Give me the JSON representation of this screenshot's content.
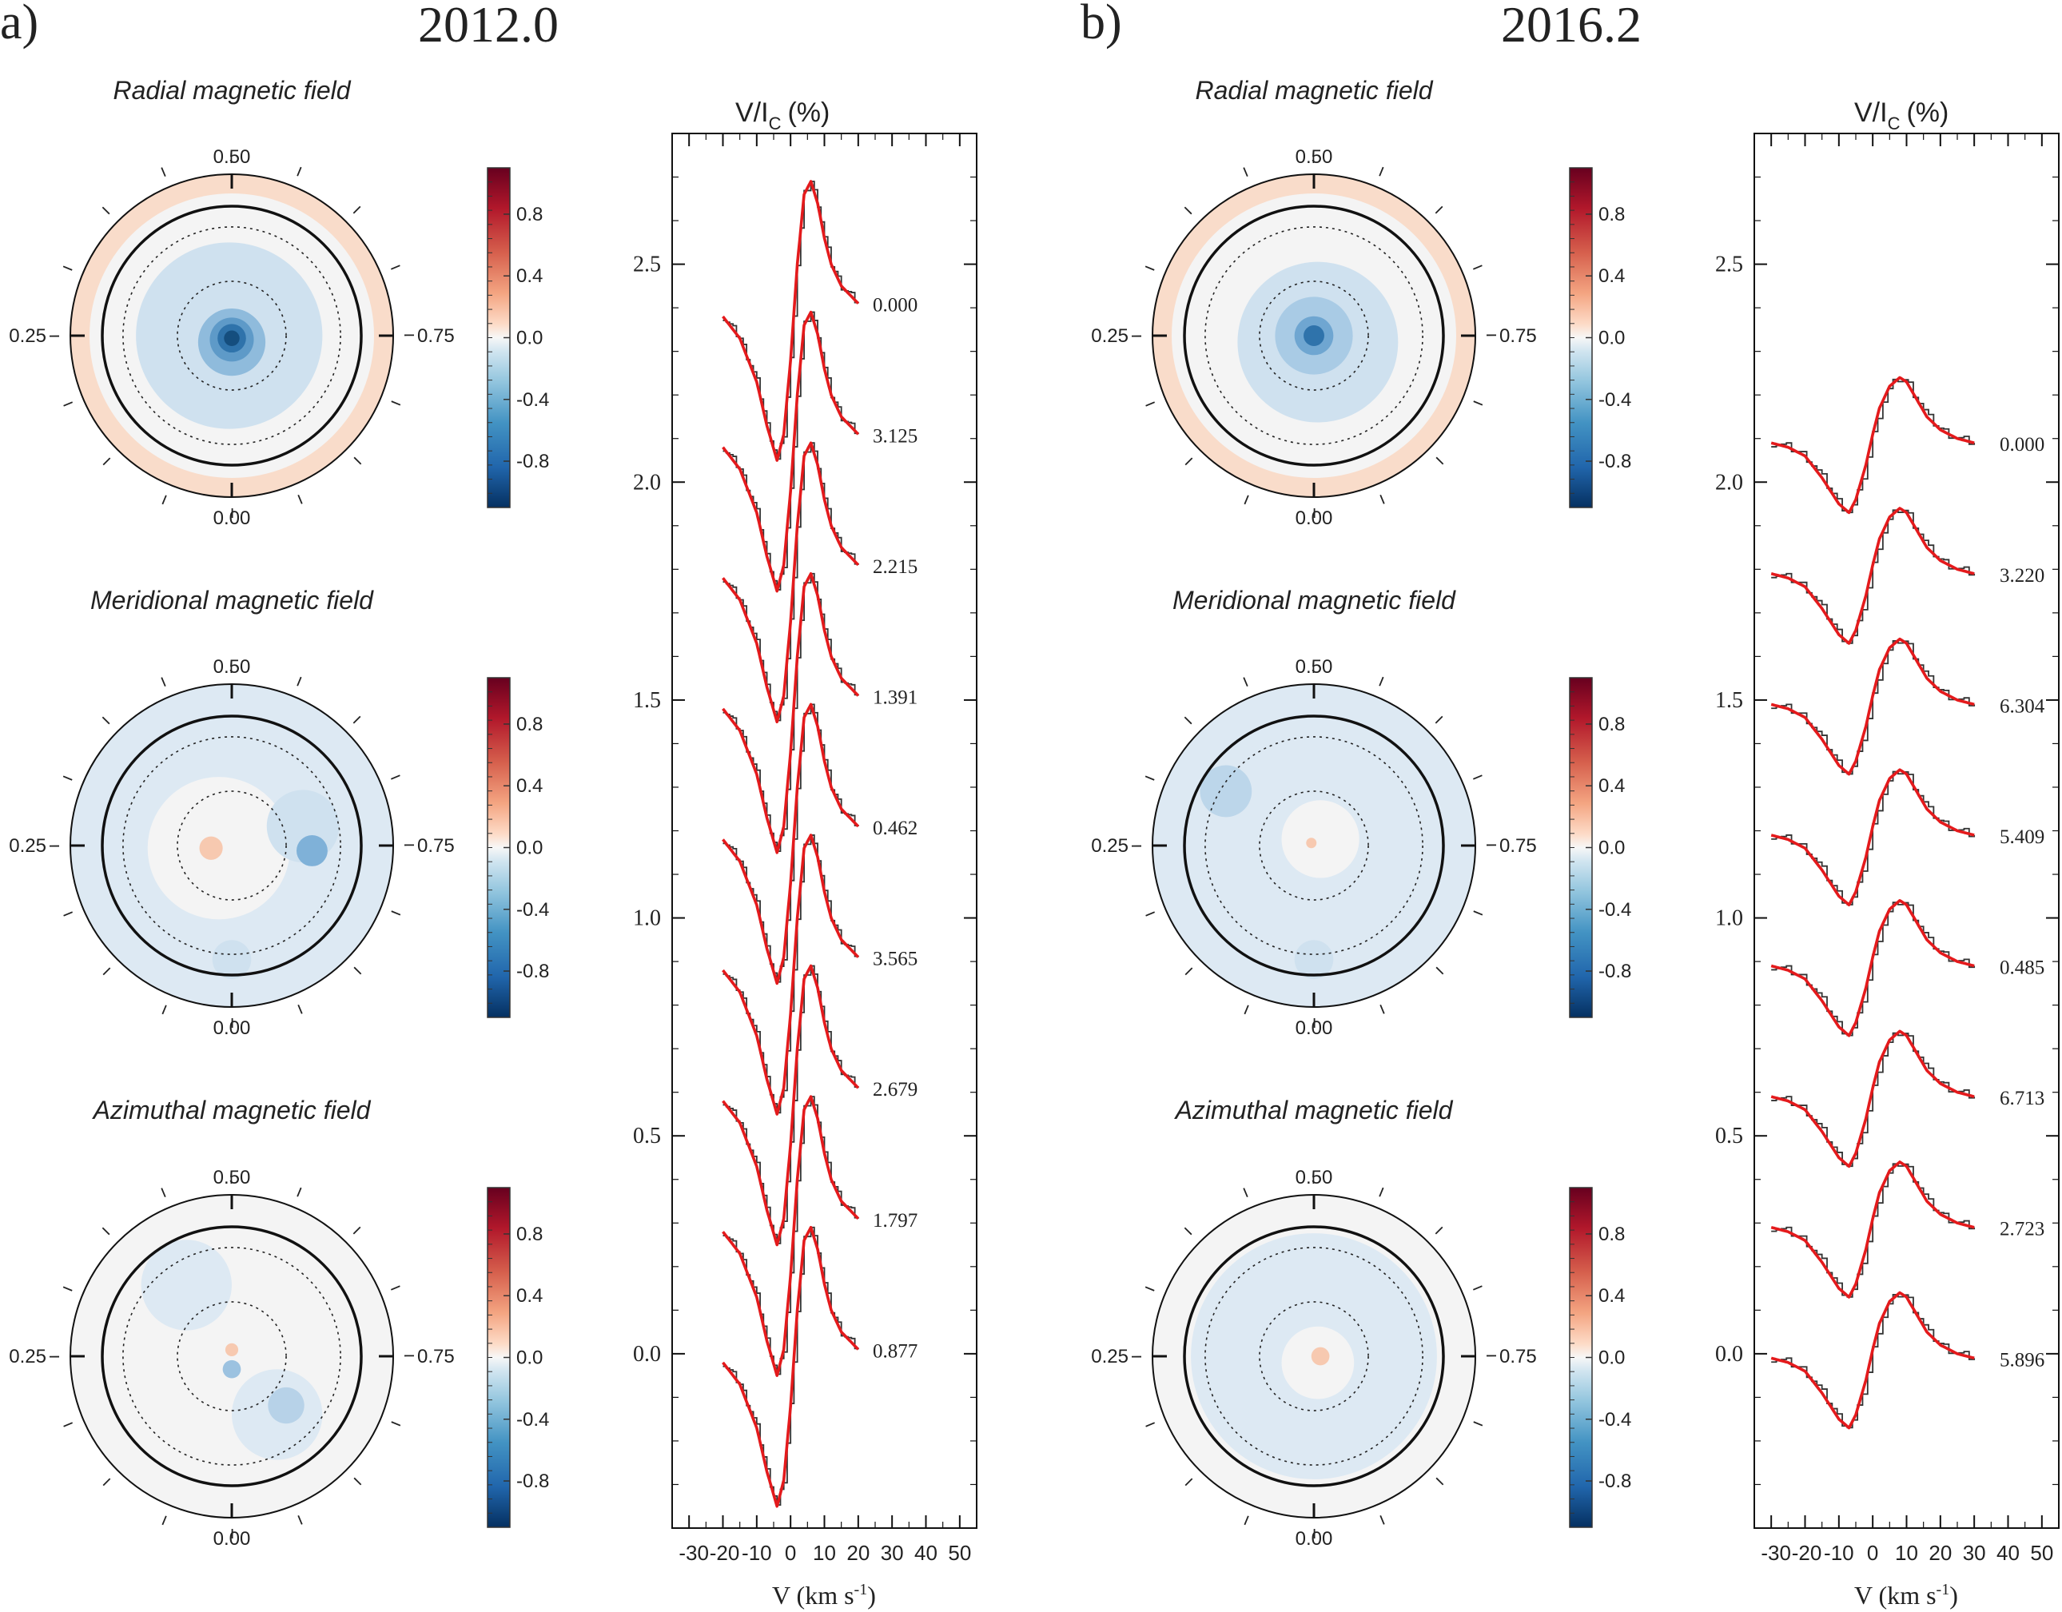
{
  "panels": [
    {
      "label": "a)",
      "epoch": "2012.0",
      "maps": [
        {
          "title": "Radial magnetic field",
          "top": "0.50",
          "left": "0.25",
          "right": "0.75",
          "bottom": "0.00",
          "band": "pos",
          "halo": {
            "color": "#cfe1ef",
            "dx": -0.02,
            "dy": 0.0,
            "r": 0.72
          },
          "spots": [
            {
              "dx": 0,
              "dy": 0.05,
              "r": 0.26,
              "c": "#8fbbdc"
            },
            {
              "dx": 0,
              "dy": 0.03,
              "r": 0.17,
              "c": "#5e9ac8"
            },
            {
              "dx": 0,
              "dy": 0.02,
              "r": 0.11,
              "c": "#2f73ab"
            },
            {
              "dx": 0,
              "dy": 0.02,
              "r": 0.06,
              "c": "#154e7e"
            }
          ]
        },
        {
          "title": "Meridional magnetic field",
          "top": "0.50",
          "left": "0.25",
          "right": "0.75",
          "bottom": "0.00",
          "band": "neg",
          "halo": {
            "color": "#f4f4f4",
            "dx": -0.1,
            "dy": 0.02,
            "r": 0.55
          },
          "spots": [
            {
              "dx": 0.55,
              "dy": -0.15,
              "r": 0.28,
              "c": "#cfe1ef"
            },
            {
              "dx": 0.62,
              "dy": 0.04,
              "r": 0.12,
              "c": "#7fb1d8"
            },
            {
              "dx": -0.16,
              "dy": 0.02,
              "r": 0.09,
              "c": "#f7c9b0"
            },
            {
              "dx": 0,
              "dy": 0.88,
              "r": 0.15,
              "c": "#cfe1ef"
            }
          ]
        },
        {
          "title": "Azimuthal magnetic field",
          "top": "0.50",
          "left": "0.25",
          "right": "0.75",
          "bottom": "0.00",
          "band": "none",
          "halo": {
            "color": "#f4f4f4",
            "dx": 0,
            "dy": 0,
            "r": 0.7
          },
          "spots": [
            {
              "dx": -0.35,
              "dy": -0.55,
              "r": 0.35,
              "c": "#dde9f3"
            },
            {
              "dx": 0.35,
              "dy": 0.45,
              "r": 0.35,
              "c": "#dde9f3"
            },
            {
              "dx": 0.42,
              "dy": 0.38,
              "r": 0.14,
              "c": "#b7d2e8"
            },
            {
              "dx": 0,
              "dy": 0.1,
              "r": 0.07,
              "c": "#9cc2e0"
            },
            {
              "dx": 0,
              "dy": -0.05,
              "r": 0.05,
              "c": "#f7c9b0"
            }
          ]
        }
      ],
      "colorbar_ticks": [
        "0.8",
        "0.4",
        "0.0",
        "-0.4",
        "-0.8"
      ],
      "profiles_ylabel": "V/I",
      "profiles_ylabel_sub": "C",
      "profiles_ylabel_unit": "(%)",
      "profiles_xlabel": "V (km s",
      "profiles_xlabel_sup": "-1",
      "profiles_xlabel_end": ")"
    },
    {
      "label": "b)",
      "epoch": "2016.2",
      "maps": [
        {
          "title": "Radial magnetic field",
          "top": "0.50",
          "left": "0.25",
          "right": "0.75",
          "bottom": "0.00",
          "band": "pos",
          "halo": {
            "color": "#f4f4f4",
            "dx": 0,
            "dy": 0,
            "r": 0.9
          },
          "spots": [
            {
              "dx": 0.03,
              "dy": 0.05,
              "r": 0.62,
              "c": "#cfe1ef"
            },
            {
              "dx": 0,
              "dy": 0.0,
              "r": 0.3,
              "c": "#a9cbe5"
            },
            {
              "dx": 0,
              "dy": 0.0,
              "r": 0.15,
              "c": "#6fa6d1"
            },
            {
              "dx": 0,
              "dy": 0.0,
              "r": 0.08,
              "c": "#2f73ab"
            }
          ]
        },
        {
          "title": "Meridional magnetic field",
          "top": "0.50",
          "left": "0.25",
          "right": "0.75",
          "bottom": "0.00",
          "band": "neg",
          "halo": {
            "color": "#dde9f3",
            "dx": 0,
            "dy": 0,
            "r": 0.9
          },
          "spots": [
            {
              "dx": -0.68,
              "dy": -0.42,
              "r": 0.2,
              "c": "#bcd6ea"
            },
            {
              "dx": 0.05,
              "dy": -0.05,
              "r": 0.3,
              "c": "#f4f4f4"
            },
            {
              "dx": -0.02,
              "dy": -0.02,
              "r": 0.04,
              "c": "#f7c9b0"
            },
            {
              "dx": 0,
              "dy": 0.88,
              "r": 0.15,
              "c": "#cfe1ef"
            }
          ]
        },
        {
          "title": "Azimuthal magnetic field",
          "top": "0.50",
          "left": "0.25",
          "right": "0.75",
          "bottom": "0.00",
          "band": "none",
          "halo": {
            "color": "#dde9f3",
            "dx": 0,
            "dy": 0,
            "r": 0.95
          },
          "spots": [
            {
              "dx": 0.03,
              "dy": 0.05,
              "r": 0.28,
              "c": "#f4f4f4"
            },
            {
              "dx": 0.05,
              "dy": 0,
              "r": 0.07,
              "c": "#f7c9b0"
            }
          ]
        }
      ],
      "colorbar_ticks": [
        "0.8",
        "0.4",
        "0.0",
        "-0.4",
        "-0.8"
      ],
      "profiles_ylabel": "V/I",
      "profiles_ylabel_sub": "C",
      "profiles_ylabel_unit": "(%)",
      "profiles_xlabel": "V (km s",
      "profiles_xlabel_sup": "-1",
      "profiles_xlabel_end": ")"
    }
  ],
  "chart_data": [
    {
      "type": "line",
      "title": "2012.0",
      "xlabel": "V (km s-1)",
      "ylabel": "V/IC (%)",
      "xlim": [
        -35,
        55
      ],
      "ylim": [
        -0.4,
        2.8
      ],
      "xticks": [
        "-30",
        "-20",
        "-10",
        "0",
        "10",
        "20",
        "30",
        "40",
        "50"
      ],
      "yticks": [
        "0.0",
        "0.5",
        "1.0",
        "1.5",
        "2.0",
        "2.5"
      ],
      "x": [
        -20,
        -15,
        -10,
        -7,
        -4,
        -2,
        0,
        2,
        4,
        6,
        8,
        10,
        12,
        15,
        20
      ],
      "profile_shape": [
        0.0,
        -0.05,
        -0.15,
        -0.25,
        -0.33,
        -0.27,
        -0.1,
        0.12,
        0.28,
        0.31,
        0.26,
        0.18,
        0.12,
        0.07,
        0.03
      ],
      "series": [
        {
          "name": "0.000",
          "offset": 2.38
        },
        {
          "name": "3.125",
          "offset": 2.08
        },
        {
          "name": "2.215",
          "offset": 1.78
        },
        {
          "name": "1.391",
          "offset": 1.48
        },
        {
          "name": "0.462",
          "offset": 1.18
        },
        {
          "name": "3.565",
          "offset": 0.88
        },
        {
          "name": "2.679",
          "offset": 0.58
        },
        {
          "name": "1.797",
          "offset": 0.28
        },
        {
          "name": "0.877",
          "offset": -0.02
        }
      ],
      "model_color": "#e41a1c",
      "obs_color": "#333333"
    },
    {
      "type": "line",
      "title": "2016.2",
      "xlabel": "V (km s-1)",
      "ylabel": "V/IC (%)",
      "xlim": [
        -35,
        55
      ],
      "ylim": [
        -0.4,
        2.8
      ],
      "xticks": [
        "-30",
        "-20",
        "-10",
        "0",
        "10",
        "20",
        "30",
        "40",
        "50"
      ],
      "yticks": [
        "0.0",
        "0.5",
        "1.0",
        "1.5",
        "2.0",
        "2.5"
      ],
      "x": [
        -30,
        -25,
        -20,
        -15,
        -10,
        -7,
        -5,
        -2,
        0,
        2,
        5,
        8,
        10,
        13,
        16,
        20,
        25,
        30
      ],
      "profile_shape": [
        0.0,
        -0.01,
        -0.03,
        -0.08,
        -0.14,
        -0.16,
        -0.13,
        -0.05,
        0.02,
        0.08,
        0.13,
        0.15,
        0.14,
        0.1,
        0.06,
        0.03,
        0.01,
        0.0
      ],
      "series": [
        {
          "name": "0.000",
          "offset": 2.09
        },
        {
          "name": "3.220",
          "offset": 1.79
        },
        {
          "name": "6.304",
          "offset": 1.49
        },
        {
          "name": "5.409",
          "offset": 1.19
        },
        {
          "name": "0.485",
          "offset": 0.89
        },
        {
          "name": "6.713",
          "offset": 0.59
        },
        {
          "name": "2.723",
          "offset": 0.29
        },
        {
          "name": "5.896",
          "offset": -0.01
        }
      ],
      "model_color": "#e41a1c",
      "obs_color": "#333333"
    }
  ]
}
